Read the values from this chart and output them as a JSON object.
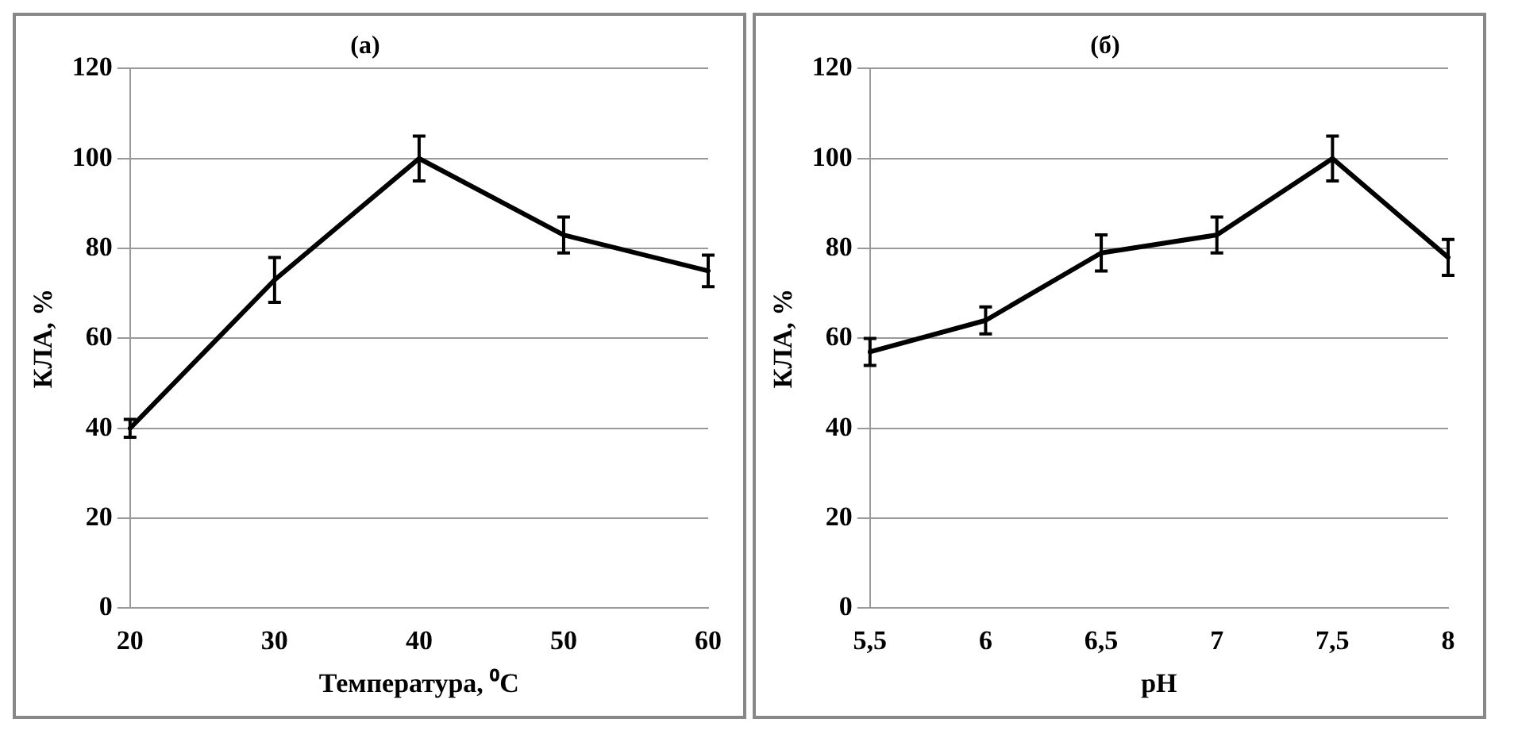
{
  "chart_data": [
    {
      "type": "line",
      "title": "(a)",
      "xlabel": "Температура, ⁰C",
      "ylabel": "КЛА, %",
      "categories": [
        "20",
        "30",
        "40",
        "50",
        "60"
      ],
      "series": [
        {
          "color": "#000000",
          "values": [
            40,
            73,
            100,
            83,
            75
          ],
          "errors": [
            2,
            5,
            5,
            4,
            3.5
          ]
        }
      ],
      "ylim": [
        0,
        120
      ],
      "yticks": [
        0,
        20,
        40,
        60,
        80,
        100,
        120
      ],
      "grid": "y",
      "legend": false,
      "marker": "none",
      "line_style": "solid"
    },
    {
      "type": "line",
      "title": "(б)",
      "xlabel": "pH",
      "ylabel": "КЛА, %",
      "categories": [
        "5,5",
        "6",
        "6,5",
        "7",
        "7,5",
        "8"
      ],
      "series": [
        {
          "color": "#000000",
          "values": [
            57,
            64,
            79,
            83,
            100,
            78
          ],
          "errors": [
            3,
            3,
            4,
            4,
            5,
            4
          ]
        }
      ],
      "ylim": [
        0,
        120
      ],
      "yticks": [
        0,
        20,
        40,
        60,
        80,
        100,
        120
      ],
      "grid": "y",
      "legend": false,
      "marker": "none",
      "line_style": "solid"
    }
  ]
}
